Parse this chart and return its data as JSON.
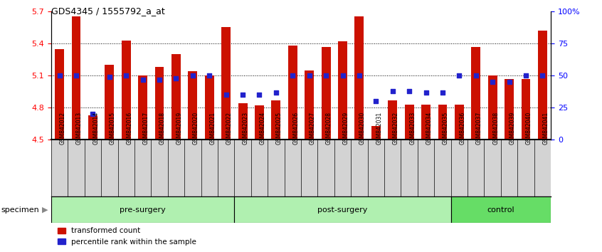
{
  "title": "GDS4345 / 1555792_a_at",
  "samples": [
    "GSM842012",
    "GSM842013",
    "GSM842014",
    "GSM842015",
    "GSM842016",
    "GSM842017",
    "GSM842018",
    "GSM842019",
    "GSM842020",
    "GSM842021",
    "GSM842022",
    "GSM842023",
    "GSM842024",
    "GSM842025",
    "GSM842026",
    "GSM842027",
    "GSM842028",
    "GSM842029",
    "GSM842030",
    "GSM842031",
    "GSM842032",
    "GSM842033",
    "GSM842034",
    "GSM842035",
    "GSM842036",
    "GSM842037",
    "GSM842038",
    "GSM842039",
    "GSM842040",
    "GSM842041"
  ],
  "bar_values": [
    5.35,
    5.65,
    4.73,
    5.2,
    5.43,
    5.1,
    5.18,
    5.3,
    5.14,
    5.1,
    5.55,
    4.84,
    4.82,
    4.87,
    5.38,
    5.15,
    5.37,
    5.42,
    5.65,
    4.63,
    4.87,
    4.83,
    4.83,
    4.83,
    4.83,
    5.37,
    5.1,
    5.07,
    5.07,
    5.52
  ],
  "percentile_values": [
    50,
    50,
    20,
    49,
    50,
    47,
    47,
    48,
    50,
    50,
    35,
    35,
    35,
    37,
    50,
    50,
    50,
    50,
    50,
    30,
    38,
    38,
    37,
    37,
    50,
    50,
    45,
    45,
    50,
    50
  ],
  "bar_color": "#cc1100",
  "dot_color": "#2222cc",
  "ylim_left": [
    4.5,
    5.7
  ],
  "ylim_right": [
    0,
    100
  ],
  "yticks_left": [
    4.5,
    4.8,
    5.1,
    5.4,
    5.7
  ],
  "yticks_right": [
    0,
    25,
    50,
    75,
    100
  ],
  "ytick_labels_left": [
    "4.5",
    "4.8",
    "5.1",
    "5.4",
    "5.7"
  ],
  "ytick_labels_right": [
    "0",
    "25",
    "50",
    "75",
    "100%"
  ],
  "groups": [
    {
      "label": "pre-surgery",
      "start": 0,
      "end": 11,
      "color": "#b0f0b0"
    },
    {
      "label": "post-surgery",
      "start": 11,
      "end": 24,
      "color": "#b0f0b0"
    },
    {
      "label": "control",
      "start": 24,
      "end": 30,
      "color": "#66dd66"
    }
  ],
  "legend_items": [
    {
      "label": "transformed count",
      "color": "#cc1100"
    },
    {
      "label": "percentile rank within the sample",
      "color": "#2222cc"
    }
  ],
  "base_value": 4.5,
  "grid_lines": [
    4.8,
    5.1,
    5.4
  ],
  "xtick_bg": "#d3d3d3"
}
